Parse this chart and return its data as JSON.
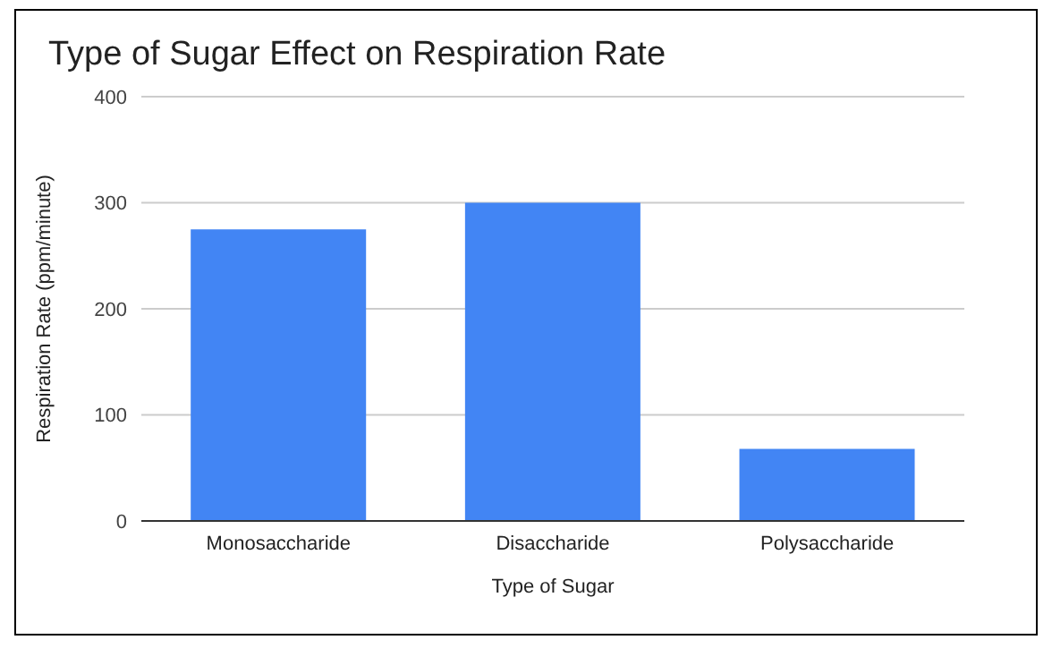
{
  "chart_data": {
    "type": "bar",
    "title": "Type of Sugar Effect on Respiration Rate",
    "xlabel": "Type of Sugar",
    "ylabel": "Respiration Rate (ppm/minute)",
    "categories": [
      "Monosaccharide",
      "Disaccharide",
      "Polysaccharide"
    ],
    "values": [
      275,
      300,
      68
    ],
    "color": "#4285f4",
    "ylim": [
      0,
      400
    ],
    "yticks": [
      0,
      100,
      200,
      300,
      400
    ],
    "grid": "y"
  }
}
